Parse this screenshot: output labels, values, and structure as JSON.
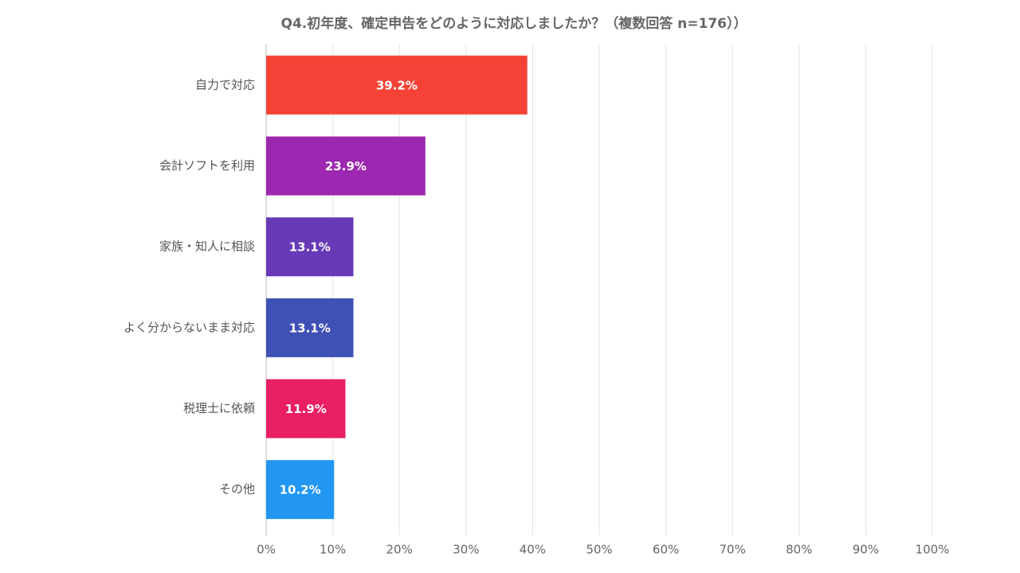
{
  "chart_data": {
    "type": "barh",
    "title": "Q4.初年度、確定申告をどのように対応しましたか？（複数回答 n=176））",
    "categories": [
      "自力で対応",
      "会計ソフトを利用",
      "家族・知人に相談",
      "よく分からないまま対応",
      "税理士に依頼",
      "その他"
    ],
    "values": [
      39.2,
      23.9,
      13.1,
      13.1,
      11.9,
      10.2
    ],
    "value_labels": [
      "39.2%",
      "23.9%",
      "13.1%",
      "13.1%",
      "11.9%",
      "10.2%"
    ],
    "colors": [
      "#f44336",
      "#9c27b0",
      "#673ab7",
      "#3f51b5",
      "#e91e63",
      "#2196f3"
    ],
    "xlim": [
      0,
      100
    ],
    "xticks": [
      {
        "value": 0,
        "label": "0%"
      },
      {
        "value": 10,
        "label": "10%"
      },
      {
        "value": 20,
        "label": "20%"
      },
      {
        "value": 30,
        "label": "30%"
      },
      {
        "value": 40,
        "label": "40%"
      },
      {
        "value": 50,
        "label": "50%"
      },
      {
        "value": 60,
        "label": "60%"
      },
      {
        "value": 70,
        "label": "70%"
      },
      {
        "value": 80,
        "label": "80%"
      },
      {
        "value": 90,
        "label": "90%"
      },
      {
        "value": 100,
        "label": "100%"
      }
    ],
    "grid": true
  }
}
